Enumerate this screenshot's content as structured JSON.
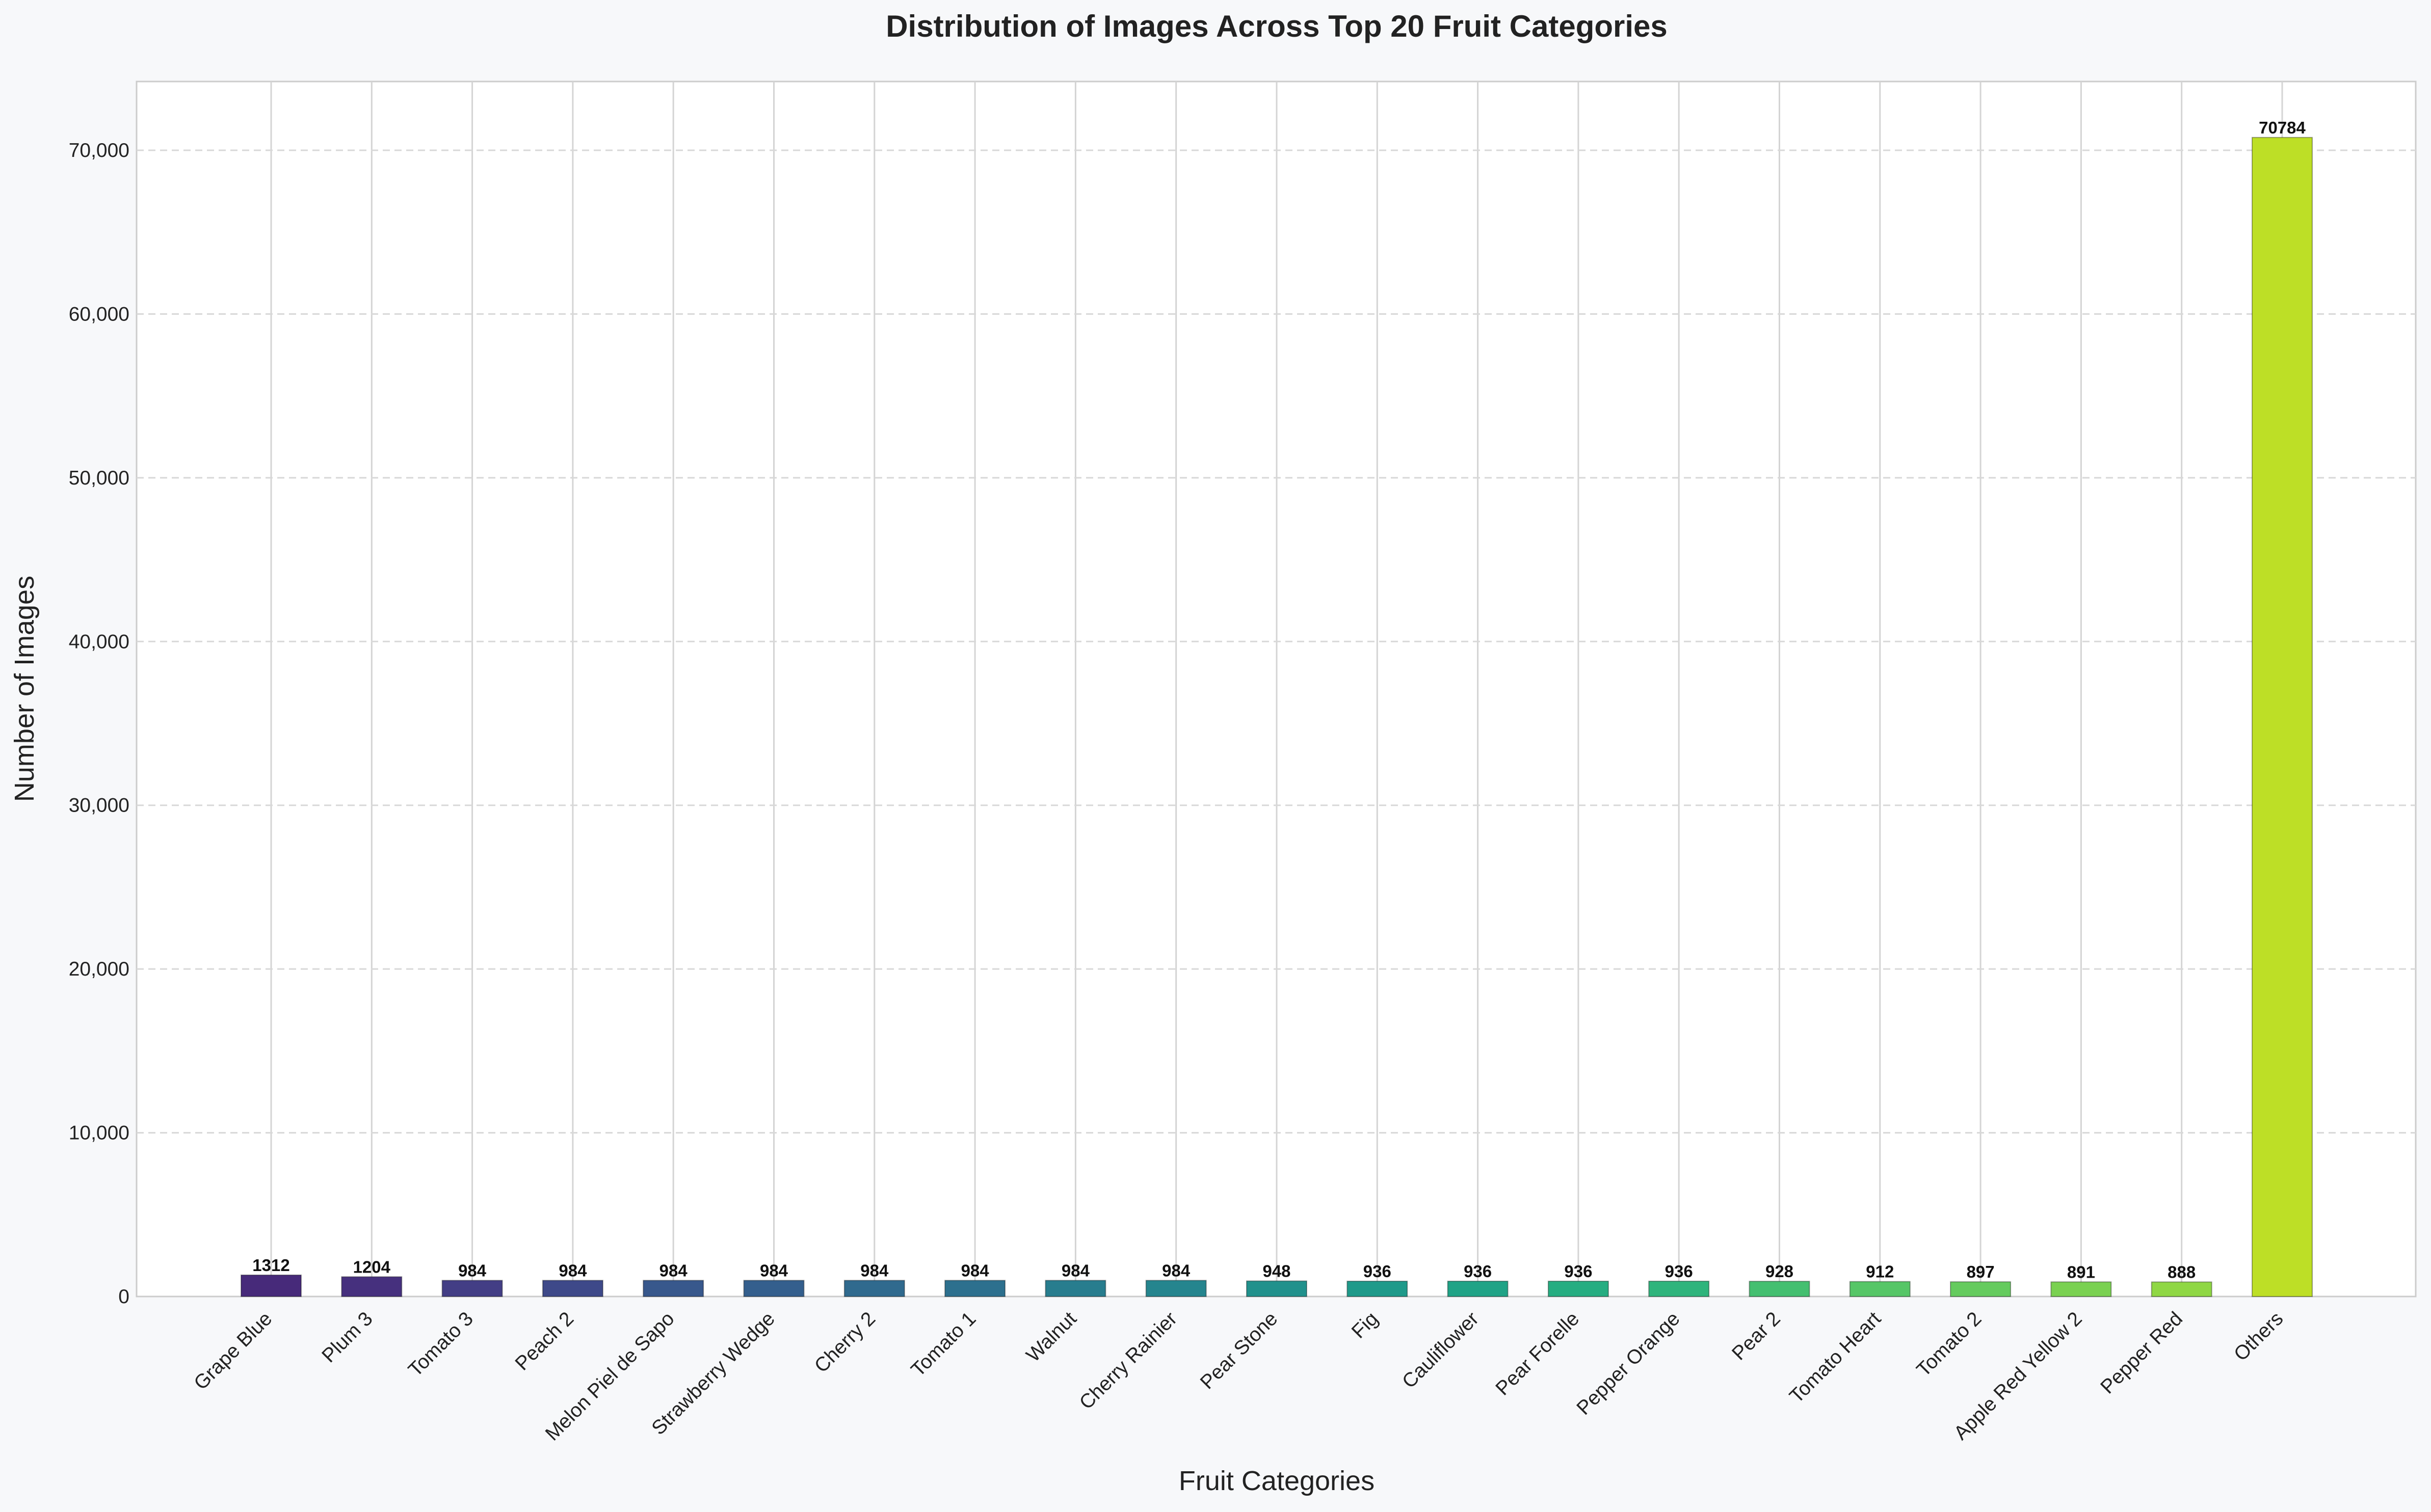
{
  "chart_data": {
    "type": "bar",
    "title": "Distribution of Images Across Top 20 Fruit Categories",
    "xlabel": "Fruit Categories",
    "ylabel": "Number of Images",
    "ylim": [
      0,
      74200
    ],
    "yticks": [
      0,
      10000,
      20000,
      30000,
      40000,
      50000,
      60000,
      70000
    ],
    "ytick_labels": [
      "0",
      "10,000",
      "20,000",
      "30,000",
      "40,000",
      "50,000",
      "60,000",
      "70,000"
    ],
    "grid": "y dashed, x solid",
    "categories": [
      "Grape Blue",
      "Plum 3",
      "Tomato 3",
      "Peach 2",
      "Melon Piel de Sapo",
      "Strawberry Wedge",
      "Cherry 2",
      "Tomato 1",
      "Walnut",
      "Cherry Rainier",
      "Pear Stone",
      "Fig",
      "Cauliflower",
      "Pear Forelle",
      "Pepper Orange",
      "Pear 2",
      "Tomato Heart",
      "Tomato 2",
      "Apple Red Yellow 2",
      "Pepper Red",
      "Others"
    ],
    "values": [
      1312,
      1204,
      984,
      984,
      984,
      984,
      984,
      984,
      984,
      984,
      948,
      936,
      936,
      936,
      936,
      928,
      912,
      897,
      891,
      888,
      70784
    ],
    "value_labels": [
      "1312",
      "1204",
      "984",
      "984",
      "984",
      "984",
      "984",
      "984",
      "984",
      "984",
      "948",
      "936",
      "936",
      "936",
      "936",
      "928",
      "912",
      "897",
      "891",
      "888",
      "70784"
    ],
    "colors": [
      "#472a7a",
      "#46307e",
      "#433e85",
      "#3e4989",
      "#38588c",
      "#345f8d",
      "#306a8e",
      "#2d708e",
      "#287d8e",
      "#25858e",
      "#21918c",
      "#1f9a8a",
      "#20a386",
      "#26ad81",
      "#2fb47c",
      "#44bf70",
      "#56c667",
      "#65cb5e",
      "#7ad151",
      "#8fd744",
      "#bddf26"
    ]
  }
}
